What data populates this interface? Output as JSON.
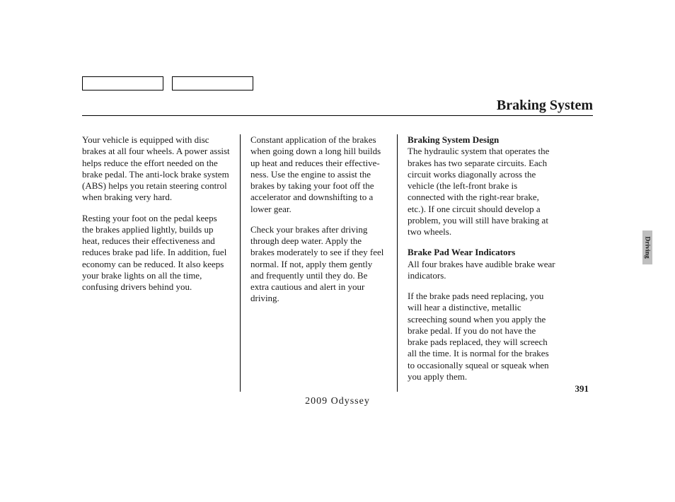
{
  "title": "Braking System",
  "footer": "2009  Odyssey",
  "page_number": "391",
  "side_tab": "Driving",
  "col1": {
    "p1": "Your vehicle is equipped with disc brakes at all four wheels. A power assist helps reduce the effort needed on the brake pedal. The anti-lock brake system (ABS) helps you retain steering control when braking very hard.",
    "p2": "Resting your foot on the pedal keeps the brakes applied lightly, builds up heat, reduces their effectiveness and reduces brake pad life. In addition, fuel economy can be reduced. It also keeps your brake lights on all the time, confusing drivers behind you."
  },
  "col2": {
    "p1": "Constant application of the brakes when going down a long hill builds up heat and reduces their effective-ness. Use the engine to assist the brakes by taking your foot off the accelerator and downshifting to a lower gear.",
    "p2": "Check your brakes after driving through deep water. Apply the brakes moderately to see if they feel normal. If not, apply them gently and frequently until they do. Be extra cautious and alert in your driving."
  },
  "col3": {
    "h1": "Braking System Design",
    "p1": "The hydraulic system that operates the brakes has two separate circuits. Each circuit works diagonally across the vehicle (the left-front brake is connected with the right-rear brake, etc.). If one circuit should develop a problem, you will still have braking at two wheels.",
    "h2": "Brake Pad Wear Indicators",
    "p2": "All four brakes have audible brake wear indicators.",
    "p3": "If the brake pads need replacing, you will hear a distinctive, metallic screeching sound when you apply the brake pedal. If you do not have the brake pads replaced, they will screech all the time. It is normal for the brakes to occasionally squeal or squeak when you apply them."
  },
  "colors": {
    "text": "#1a1a1a",
    "tab_bg": "#bfbfbf",
    "border": "#000000",
    "background": "#ffffff"
  },
  "typography": {
    "body_fontsize": 13,
    "title_fontsize": 20,
    "font_family": "Georgia, Times New Roman, serif"
  }
}
